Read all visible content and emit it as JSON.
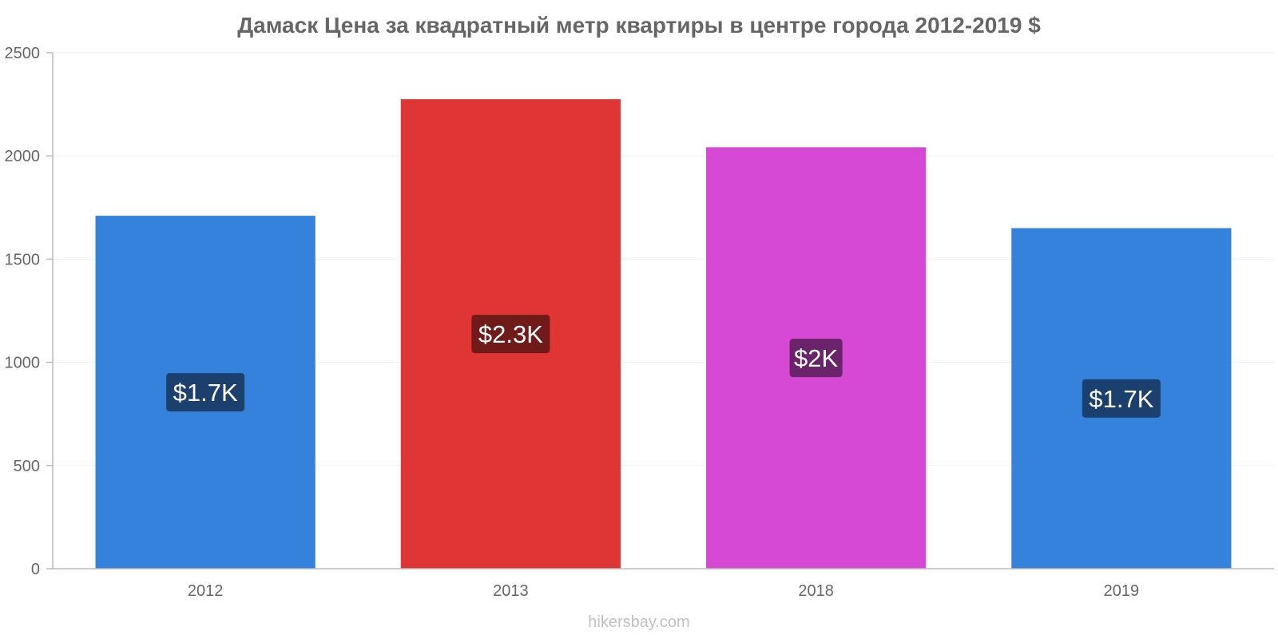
{
  "chart_data": {
    "type": "bar",
    "title": "Дамаск Цена за квадратный метр квартиры в центре города 2012-2019 $",
    "xlabel": "",
    "ylabel": "",
    "categories": [
      "2012",
      "2013",
      "2018",
      "2019"
    ],
    "values": [
      1710,
      2275,
      2042,
      1650
    ],
    "value_labels": [
      "$1.7K",
      "$2.3K",
      "$2K",
      "$1.7K"
    ],
    "bar_colors": [
      "#3482dc",
      "#e03535",
      "#d649d4",
      "#3482dc"
    ],
    "label_bg_colors": [
      "#1b406e",
      "#701a1a",
      "#6b246a",
      "#1b406e"
    ],
    "ylim": [
      0,
      2500
    ],
    "yticks": [
      0,
      500,
      1000,
      1500,
      2000,
      2500
    ],
    "grid": true,
    "legend": "none"
  },
  "footer": "hikersbay.com"
}
